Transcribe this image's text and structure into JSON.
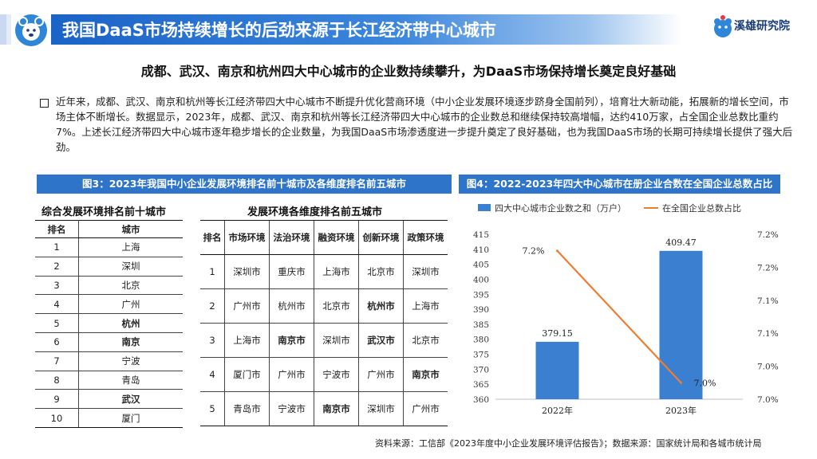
{
  "header": {
    "title": "我国DaaS市场持续增长的后劲来源于长江经济带中心城市",
    "brand": "溪雄研究院"
  },
  "subtitle": "成都、武汉、南京和杭州四大中心城市的企业数持续攀升，为DaaS市场保持增长奠定良好基础",
  "paragraph": "近年来，成都、武汉、南京和杭州等长江经济带四大中心城市不断提升优化营商环境（中小企业发展环境逐步跻身全国前列），培育壮大新动能，拓展新的增长空间，市场主体不断增长。数据显示，2023年，成都、武汉、南京和杭州等长江经济带四大中心城市的企业数总和继续保持较高增幅，达约410万家，占全国企业总数比重约7%。上述长江经济带四大中心城市逐年稳步增长的企业数量，为我国DaaS市场渗透度进一步提升奠定了良好基础，也为我国DaaS市场的长期可持续增长提供了强大后劲。",
  "fig3": {
    "title": "图3：2023年我国中小企业发展环境排名前十城市及各维度排名前五城市",
    "table1": {
      "title": "综合发展环境排名前十城市",
      "headers": [
        "排名",
        "城市"
      ],
      "rows": [
        {
          "rank": "1",
          "city": "上海",
          "bold": false
        },
        {
          "rank": "2",
          "city": "深圳",
          "bold": false
        },
        {
          "rank": "3",
          "city": "北京",
          "bold": false
        },
        {
          "rank": "4",
          "city": "广州",
          "bold": false
        },
        {
          "rank": "5",
          "city": "杭州",
          "bold": true
        },
        {
          "rank": "6",
          "city": "南京",
          "bold": true
        },
        {
          "rank": "7",
          "city": "宁波",
          "bold": false
        },
        {
          "rank": "8",
          "city": "青岛",
          "bold": false
        },
        {
          "rank": "9",
          "city": "武汉",
          "bold": true
        },
        {
          "rank": "10",
          "city": "厦门",
          "bold": false
        }
      ]
    },
    "table2": {
      "title": "发展环境各维度排名前五城市",
      "headers": [
        "排名",
        "市场环境",
        "法治环境",
        "融资环境",
        "创新环境",
        "政策环境"
      ],
      "rows": [
        {
          "rank": "1",
          "cells": [
            "深圳市",
            "重庆市",
            "上海市",
            "北京市",
            "深圳市"
          ],
          "bold": [
            false,
            false,
            false,
            false,
            false
          ]
        },
        {
          "rank": "2",
          "cells": [
            "广州市",
            "杭州市",
            "北京市",
            "杭州市",
            "上海市"
          ],
          "bold": [
            false,
            false,
            false,
            true,
            false
          ]
        },
        {
          "rank": "3",
          "cells": [
            "上海市",
            "南京市",
            "深圳市",
            "武汉市",
            "北京市"
          ],
          "bold": [
            false,
            true,
            false,
            true,
            false
          ]
        },
        {
          "rank": "4",
          "cells": [
            "厦门市",
            "广州市",
            "宁波市",
            "广州市",
            "南京市"
          ],
          "bold": [
            false,
            false,
            false,
            false,
            true
          ]
        },
        {
          "rank": "5",
          "cells": [
            "青岛市",
            "宁波市",
            "南京市",
            "深圳市",
            "广州市"
          ],
          "bold": [
            false,
            false,
            true,
            false,
            false
          ]
        }
      ]
    }
  },
  "fig4": {
    "title": "图4：2022-2023年四大中心城市在册企业合数在全国企业总数占比"
  },
  "chart_data": {
    "type": "bar",
    "categories": [
      "2022年",
      "2023年"
    ],
    "series": [
      {
        "name": "四大中心城市企业数之和（万户）",
        "kind": "bar",
        "axis": "left",
        "values": [
          379.15,
          409.47
        ],
        "labels": [
          "379.15",
          "409.47"
        ],
        "color": "#3b7fd1"
      },
      {
        "name": "在全国企业总数占比",
        "kind": "line",
        "axis": "right",
        "values": [
          7.2,
          7.0
        ],
        "labels": [
          "7.2%",
          "7.0%"
        ],
        "color": "#ed7d31"
      }
    ],
    "ylim": [
      360,
      415
    ],
    "yticks": [
      "360",
      "365",
      "370",
      "375",
      "380",
      "385",
      "390",
      "395",
      "400",
      "405",
      "410",
      "415"
    ],
    "y2ticks": [
      "7.0%",
      "7.0%",
      "7.1%",
      "7.1%",
      "7.2%",
      "7.2%"
    ],
    "y2lim": [
      6.975,
      7.225
    ]
  },
  "source": "资料来源：工信部《2023年度中小企业发展环境评估报告》；数据来源：国家统计局和各城市统计局"
}
